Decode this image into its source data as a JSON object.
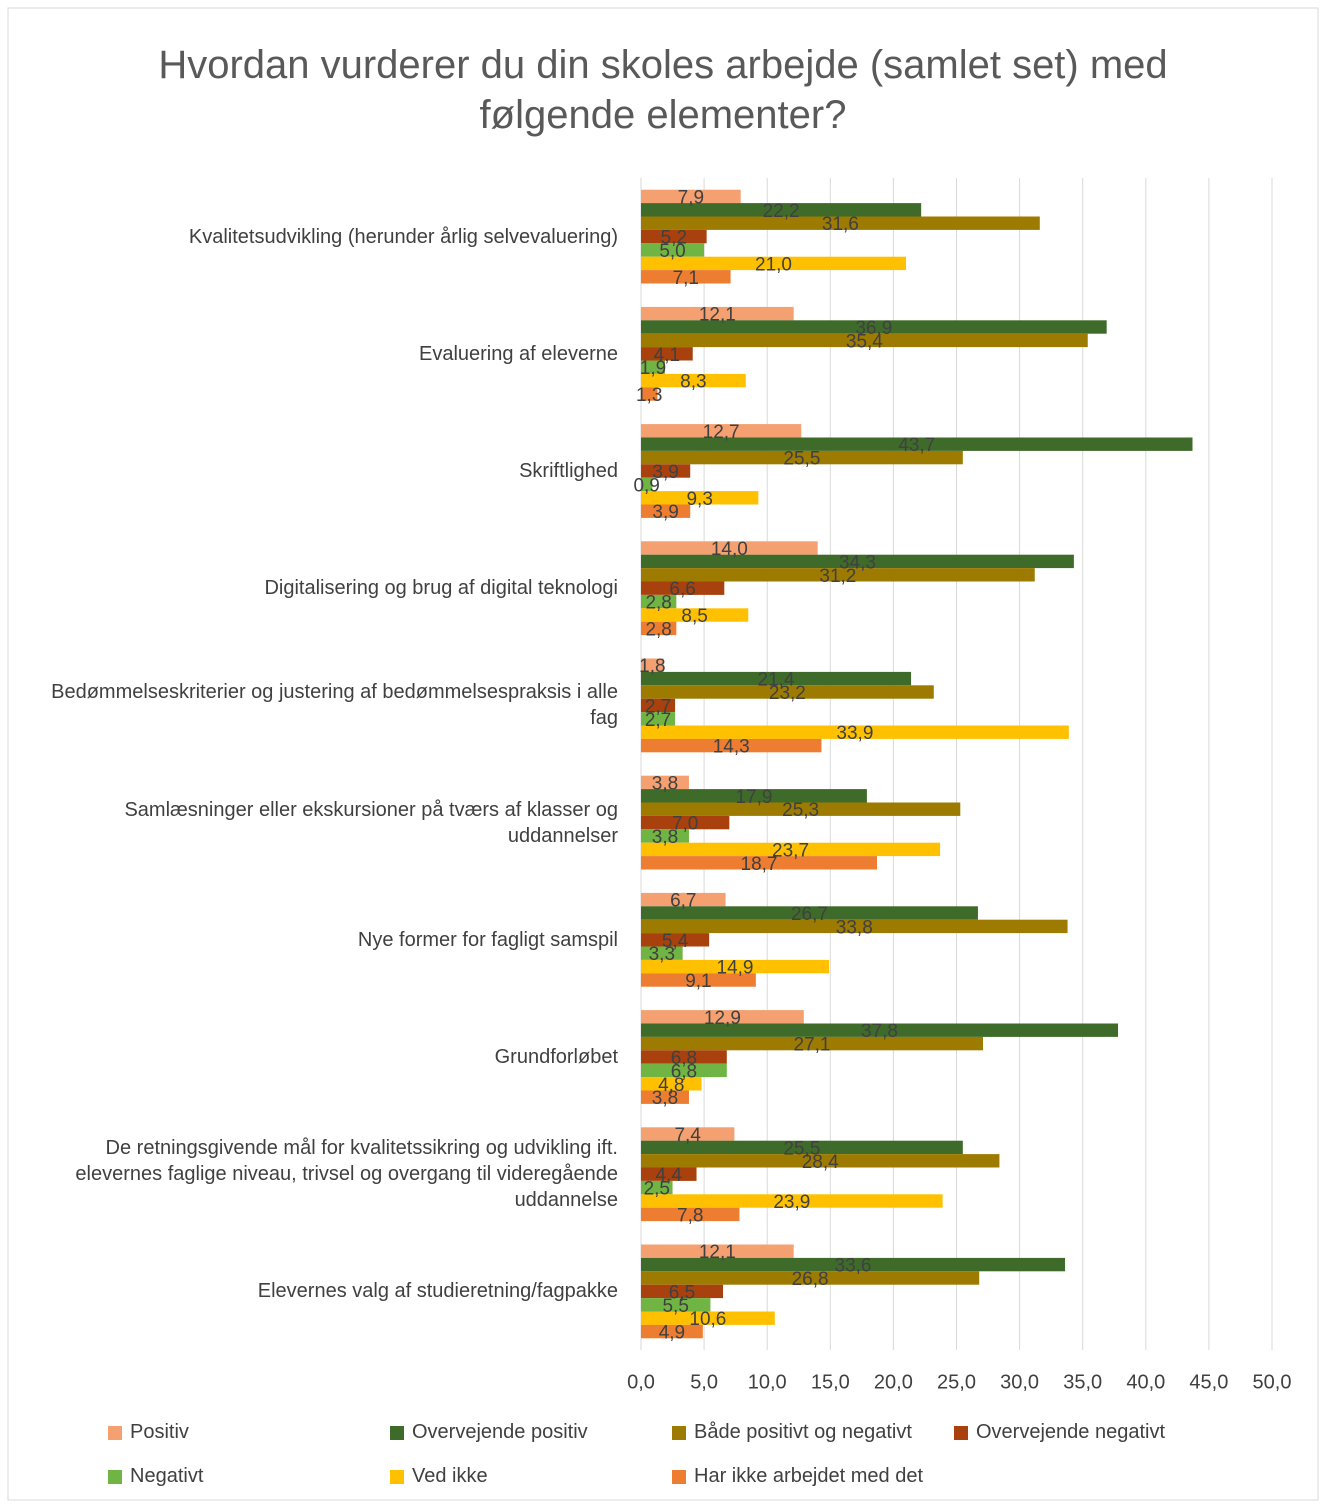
{
  "chart_data": {
    "type": "bar",
    "orientation": "horizontal",
    "title": "Hvordan vurderer du din skoles arbejde (samlet set) med følgende elementer?",
    "categories": [
      "Kvalitetsudvikling (herunder årlig selvevaluering)",
      "Evaluering af eleverne",
      "Skriftlighed",
      "Digitalisering og brug af digital teknologi",
      "Bedømmelseskriterier og justering af bedømmelsespraksis i alle fag",
      "Samlæsninger eller ekskursioner på tværs af klasser og uddannelser",
      "Nye former for fagligt samspil",
      "Grundforløbet",
      "De retningsgivende mål for kvalitetssikring og udvikling ift. elevernes faglige niveau, trivsel og overgang til videregående uddannelse",
      "Elevernes valg af studieretning/fagpakke"
    ],
    "series": [
      {
        "name": "Positiv",
        "color": "#f4a070",
        "values": [
          7.9,
          12.1,
          12.7,
          14.0,
          1.8,
          3.8,
          6.7,
          12.9,
          7.4,
          12.1
        ],
        "value_labels": [
          "7,9",
          "12,1",
          "12,7",
          "14,0",
          "1,8",
          "3,8",
          "6,7",
          "12,9",
          "7,4",
          "12,1"
        ]
      },
      {
        "name": "Overvejende positiv",
        "color": "#3e6b2a",
        "values": [
          22.2,
          36.9,
          43.7,
          34.3,
          21.4,
          17.9,
          26.7,
          37.8,
          25.5,
          33.6
        ],
        "value_labels": [
          "22,2",
          "36,9",
          "43,7",
          "34,3",
          "21,4",
          "17,9",
          "26,7",
          "37,8",
          "25,5",
          "33,6"
        ]
      },
      {
        "name": "Både positivt og negativt",
        "color": "#9d7a00",
        "values": [
          31.6,
          35.4,
          25.5,
          31.2,
          23.2,
          25.3,
          33.8,
          27.1,
          28.4,
          26.8
        ],
        "value_labels": [
          "31,6",
          "35,4",
          "25,5",
          "31,2",
          "23,2",
          "25,3",
          "33,8",
          "27,1",
          "28,4",
          "26,8"
        ]
      },
      {
        "name": "Overvejende negativt",
        "color": "#a9410e",
        "values": [
          5.2,
          4.1,
          3.9,
          6.6,
          2.7,
          7.0,
          5.4,
          6.8,
          4.4,
          6.5
        ],
        "value_labels": [
          "5,2",
          "4,1",
          "3,9",
          "6,6",
          "2,7",
          "7,0",
          "5,4",
          "6,8",
          "4,4",
          "6,5"
        ]
      },
      {
        "name": "Negativt",
        "color": "#70b443",
        "values": [
          5.0,
          1.9,
          0.9,
          2.8,
          2.7,
          3.8,
          3.3,
          6.8,
          2.5,
          5.5
        ],
        "value_labels": [
          "5,0",
          "1,9",
          "0,9",
          "2,8",
          "2,7",
          "3,8",
          "3,3",
          "6,8",
          "2,5",
          "5,5"
        ]
      },
      {
        "name": "Ved ikke",
        "color": "#ffc000",
        "values": [
          21.0,
          8.3,
          9.3,
          8.5,
          33.9,
          23.7,
          14.9,
          4.8,
          23.9,
          10.6
        ],
        "value_labels": [
          "21,0",
          "8,3",
          "9,3",
          "8,5",
          "33,9",
          "23,7",
          "14,9",
          "4,8",
          "23,9",
          "10,6"
        ]
      },
      {
        "name": "Har ikke arbejdet med det",
        "color": "#ed7d31",
        "values": [
          7.1,
          1.3,
          3.9,
          2.8,
          14.3,
          18.7,
          9.1,
          3.8,
          7.8,
          4.9
        ],
        "value_labels": [
          "7,1",
          "1,3",
          "3,9",
          "2,8",
          "14,3",
          "18,7",
          "9,1",
          "3,8",
          "7,8",
          "4,9"
        ]
      }
    ],
    "xlim": [
      0,
      50
    ],
    "xticks": [
      {
        "value": 0,
        "label": "0,0"
      },
      {
        "value": 5,
        "label": "5,0"
      },
      {
        "value": 10,
        "label": "10,0"
      },
      {
        "value": 15,
        "label": "15,0"
      },
      {
        "value": 20,
        "label": "20,0"
      },
      {
        "value": 25,
        "label": "25,0"
      },
      {
        "value": 30,
        "label": "30,0"
      },
      {
        "value": 35,
        "label": "35,0"
      },
      {
        "value": 40,
        "label": "40,0"
      },
      {
        "value": 45,
        "label": "45,0"
      },
      {
        "value": 50,
        "label": "50,0"
      }
    ],
    "grid": true,
    "legend": "bottom"
  }
}
